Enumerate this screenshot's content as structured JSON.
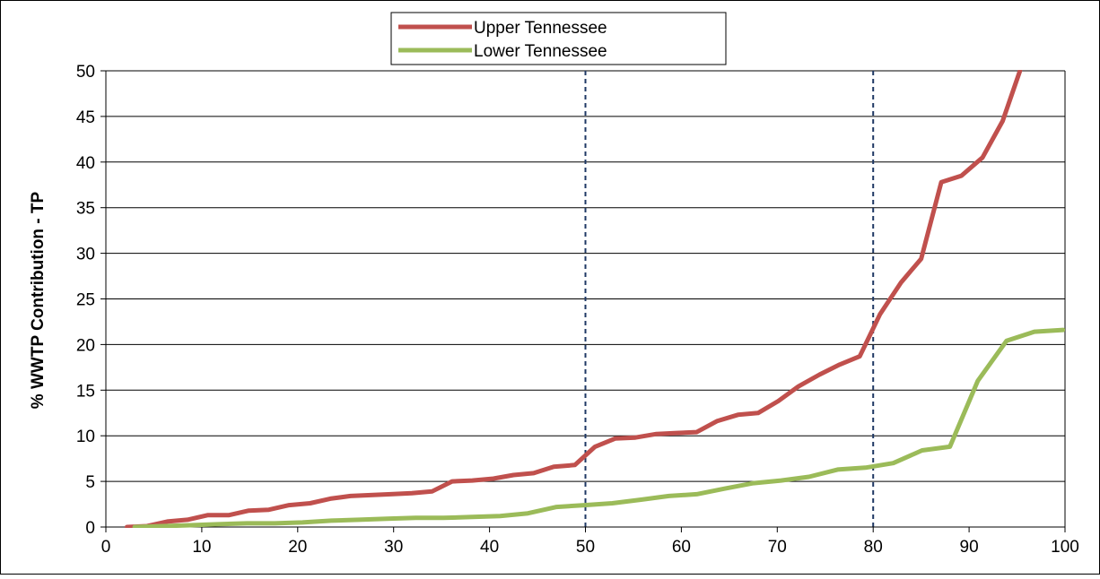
{
  "chart_data": {
    "type": "line",
    "title": "",
    "xlabel": "",
    "ylabel": "% WWTP Contribution - TP",
    "xlim": [
      0,
      100
    ],
    "ylim": [
      0,
      50
    ],
    "xticks": [
      0,
      10,
      20,
      30,
      40,
      50,
      60,
      70,
      80,
      90,
      100
    ],
    "yticks": [
      0,
      5,
      10,
      15,
      20,
      25,
      30,
      35,
      40,
      45,
      50
    ],
    "grid": "horizontal",
    "legend_position": "top-center",
    "reference_lines_x": [
      50,
      80
    ],
    "series": [
      {
        "name": "Upper Tennessee",
        "color": "#c0504d",
        "points": [
          [
            2.2,
            0
          ],
          [
            4.3,
            0.1
          ],
          [
            6.4,
            0.6
          ],
          [
            8.5,
            0.8
          ],
          [
            10.6,
            1.3
          ],
          [
            12.8,
            1.3
          ],
          [
            14.9,
            1.8
          ],
          [
            17.0,
            1.9
          ],
          [
            19.1,
            2.4
          ],
          [
            21.3,
            2.6
          ],
          [
            23.4,
            3.1
          ],
          [
            25.5,
            3.4
          ],
          [
            27.6,
            3.5
          ],
          [
            29.7,
            3.6
          ],
          [
            31.9,
            3.7
          ],
          [
            34.0,
            3.9
          ],
          [
            36.1,
            5.0
          ],
          [
            38.2,
            5.1
          ],
          [
            40.4,
            5.3
          ],
          [
            42.5,
            5.7
          ],
          [
            44.6,
            5.9
          ],
          [
            46.7,
            6.6
          ],
          [
            48.9,
            6.8
          ],
          [
            51.0,
            8.8
          ],
          [
            53.1,
            9.7
          ],
          [
            55.2,
            9.8
          ],
          [
            57.4,
            10.2
          ],
          [
            59.5,
            10.3
          ],
          [
            61.6,
            10.4
          ],
          [
            63.7,
            11.6
          ],
          [
            65.9,
            12.3
          ],
          [
            68.0,
            12.5
          ],
          [
            70.1,
            13.8
          ],
          [
            72.2,
            15.4
          ],
          [
            74.4,
            16.7
          ],
          [
            76.5,
            17.8
          ],
          [
            78.6,
            18.7
          ],
          [
            80.7,
            23.3
          ],
          [
            82.9,
            26.8
          ],
          [
            85.0,
            29.4
          ],
          [
            87.1,
            37.8
          ],
          [
            89.2,
            38.5
          ],
          [
            91.4,
            40.5
          ],
          [
            93.5,
            44.5
          ],
          [
            95.3,
            50.0
          ]
        ]
      },
      {
        "name": "Lower Tennessee",
        "color": "#9bbb59",
        "points": [
          [
            3.0,
            0
          ],
          [
            5.9,
            0.1
          ],
          [
            8.8,
            0.2
          ],
          [
            11.7,
            0.3
          ],
          [
            14.7,
            0.4
          ],
          [
            17.6,
            0.4
          ],
          [
            20.5,
            0.5
          ],
          [
            23.5,
            0.7
          ],
          [
            26.4,
            0.8
          ],
          [
            29.3,
            0.9
          ],
          [
            32.3,
            1.0
          ],
          [
            35.2,
            1.0
          ],
          [
            38.2,
            1.1
          ],
          [
            41.1,
            1.2
          ],
          [
            44.0,
            1.5
          ],
          [
            47.0,
            2.2
          ],
          [
            49.9,
            2.4
          ],
          [
            52.8,
            2.6
          ],
          [
            55.8,
            3.0
          ],
          [
            58.7,
            3.4
          ],
          [
            61.6,
            3.6
          ],
          [
            64.5,
            4.2
          ],
          [
            67.5,
            4.8
          ],
          [
            70.4,
            5.1
          ],
          [
            73.3,
            5.5
          ],
          [
            76.3,
            6.3
          ],
          [
            79.2,
            6.5
          ],
          [
            82.1,
            7.0
          ],
          [
            85.1,
            8.4
          ],
          [
            88.0,
            8.8
          ],
          [
            90.9,
            16.0
          ],
          [
            93.9,
            20.4
          ],
          [
            96.8,
            21.4
          ],
          [
            99.8,
            21.6
          ]
        ]
      }
    ]
  }
}
